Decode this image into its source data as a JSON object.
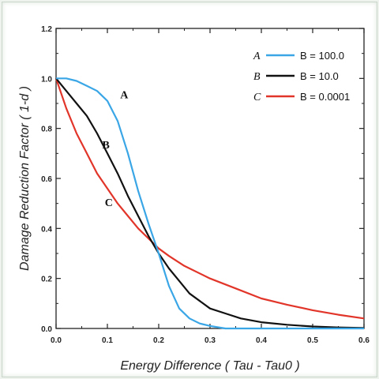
{
  "chart_data": {
    "type": "line",
    "title": "",
    "xlabel": "Energy Difference ( Tau - Tau0 )",
    "ylabel": "Damage Reduction Factor ( 1-d )",
    "xlim": [
      0.0,
      0.6
    ],
    "ylim": [
      0.0,
      1.2
    ],
    "xticks": [
      "0.0",
      "0.1",
      "0.2",
      "0.3",
      "0.4",
      "0.5",
      "0.6"
    ],
    "yticks": [
      "0.0",
      "0.2",
      "0.4",
      "0.6",
      "0.8",
      "1.0",
      "1.2"
    ],
    "grid": false,
    "legend_position": "top-right",
    "series": [
      {
        "name": "B = 100.0",
        "letter": "A",
        "color": "#3aa6e6",
        "points": [
          [
            0.0,
            1.0
          ],
          [
            0.02,
            1.0
          ],
          [
            0.04,
            0.99
          ],
          [
            0.06,
            0.97
          ],
          [
            0.08,
            0.95
          ],
          [
            0.1,
            0.91
          ],
          [
            0.12,
            0.83
          ],
          [
            0.14,
            0.7
          ],
          [
            0.16,
            0.55
          ],
          [
            0.18,
            0.42
          ],
          [
            0.2,
            0.3
          ],
          [
            0.22,
            0.17
          ],
          [
            0.24,
            0.08
          ],
          [
            0.26,
            0.04
          ],
          [
            0.28,
            0.02
          ],
          [
            0.3,
            0.01
          ],
          [
            0.33,
            0.0
          ],
          [
            0.6,
            0.0
          ]
        ]
      },
      {
        "name": "B = 10.0",
        "letter": "B",
        "color": "#111111",
        "points": [
          [
            0.0,
            1.0
          ],
          [
            0.02,
            0.95
          ],
          [
            0.04,
            0.9
          ],
          [
            0.06,
            0.85
          ],
          [
            0.08,
            0.78
          ],
          [
            0.1,
            0.7
          ],
          [
            0.12,
            0.62
          ],
          [
            0.14,
            0.53
          ],
          [
            0.16,
            0.45
          ],
          [
            0.18,
            0.37
          ],
          [
            0.2,
            0.3
          ],
          [
            0.22,
            0.24
          ],
          [
            0.24,
            0.19
          ],
          [
            0.26,
            0.14
          ],
          [
            0.28,
            0.11
          ],
          [
            0.3,
            0.08
          ],
          [
            0.33,
            0.06
          ],
          [
            0.36,
            0.04
          ],
          [
            0.4,
            0.025
          ],
          [
            0.45,
            0.015
          ],
          [
            0.5,
            0.008
          ],
          [
            0.55,
            0.004
          ],
          [
            0.6,
            0.002
          ]
        ]
      },
      {
        "name": "B = 0.0001",
        "letter": "C",
        "color": "#e2352a",
        "points": [
          [
            0.0,
            1.0
          ],
          [
            0.02,
            0.88
          ],
          [
            0.04,
            0.78
          ],
          [
            0.06,
            0.7
          ],
          [
            0.08,
            0.62
          ],
          [
            0.1,
            0.56
          ],
          [
            0.12,
            0.5
          ],
          [
            0.14,
            0.45
          ],
          [
            0.16,
            0.4
          ],
          [
            0.18,
            0.36
          ],
          [
            0.2,
            0.32
          ],
          [
            0.22,
            0.29
          ],
          [
            0.25,
            0.25
          ],
          [
            0.3,
            0.2
          ],
          [
            0.35,
            0.16
          ],
          [
            0.4,
            0.12
          ],
          [
            0.45,
            0.095
          ],
          [
            0.5,
            0.073
          ],
          [
            0.55,
            0.055
          ],
          [
            0.6,
            0.04
          ]
        ]
      }
    ],
    "annotations": [
      {
        "text": "A",
        "x": 0.125,
        "y": 0.92
      },
      {
        "text": "B",
        "x": 0.09,
        "y": 0.72
      },
      {
        "text": "C",
        "x": 0.095,
        "y": 0.49
      }
    ]
  }
}
